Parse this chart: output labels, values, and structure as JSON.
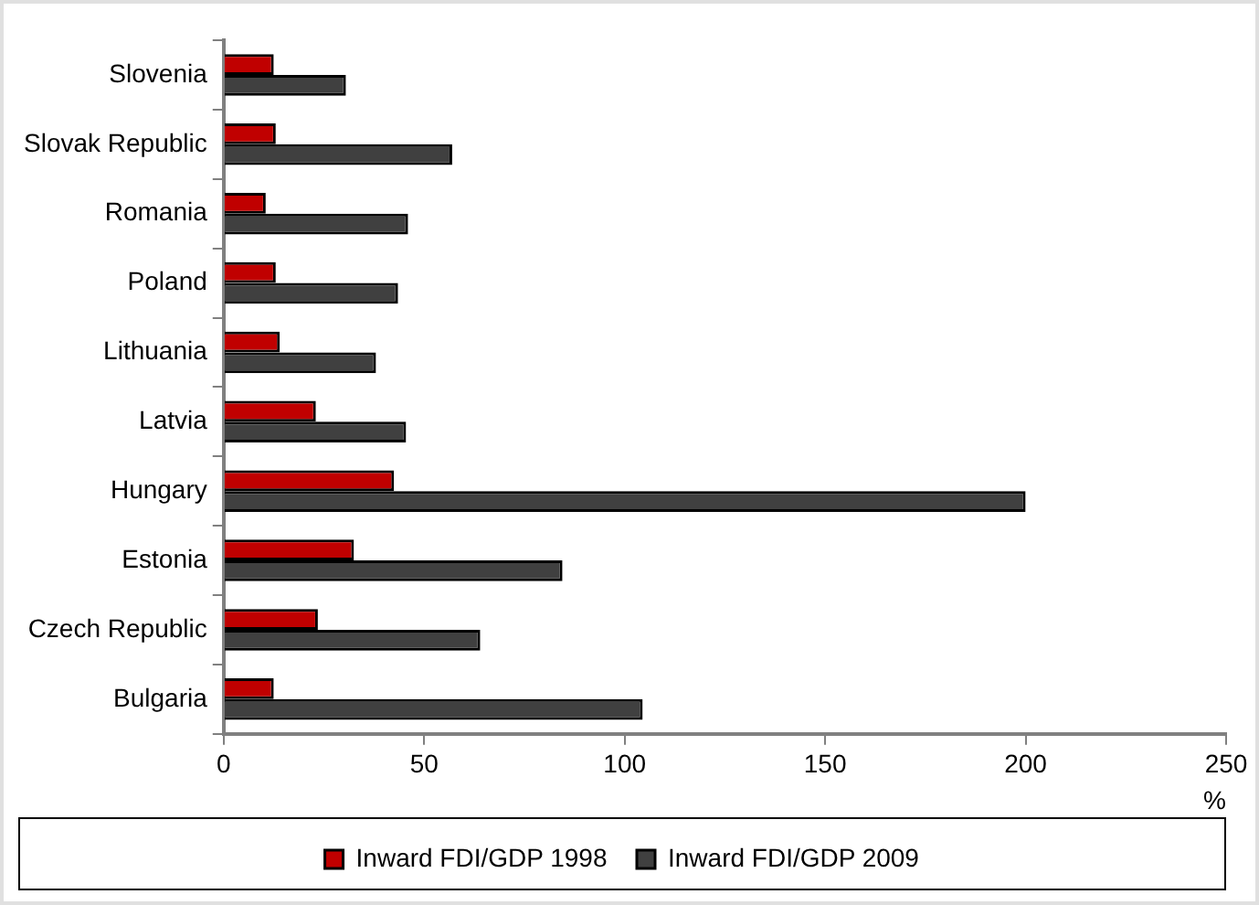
{
  "chart_data": {
    "type": "bar",
    "orientation": "horizontal",
    "xlabel": "%",
    "categories": [
      "Slovenia",
      "Slovak Republic",
      "Romania",
      "Poland",
      "Lithuania",
      "Latvia",
      "Hungary",
      "Estonia",
      "Czech Republic",
      "Bulgaria"
    ],
    "series": [
      {
        "name": "Inward FDI/GDP 1998",
        "color": "#c00000",
        "values": [
          12.5,
          13,
          10.5,
          13,
          14,
          23,
          42.5,
          32.5,
          23.5,
          12.5
        ]
      },
      {
        "name": "Inward FDI/GDP 2009",
        "color": "#404040",
        "values": [
          30.5,
          57,
          46,
          43.5,
          38,
          45.5,
          200,
          84.5,
          64,
          104.5
        ]
      }
    ],
    "xlim": [
      0,
      250
    ],
    "xticks": [
      0,
      50,
      100,
      150,
      200,
      250
    ],
    "grid": false,
    "legend": "bottom"
  }
}
